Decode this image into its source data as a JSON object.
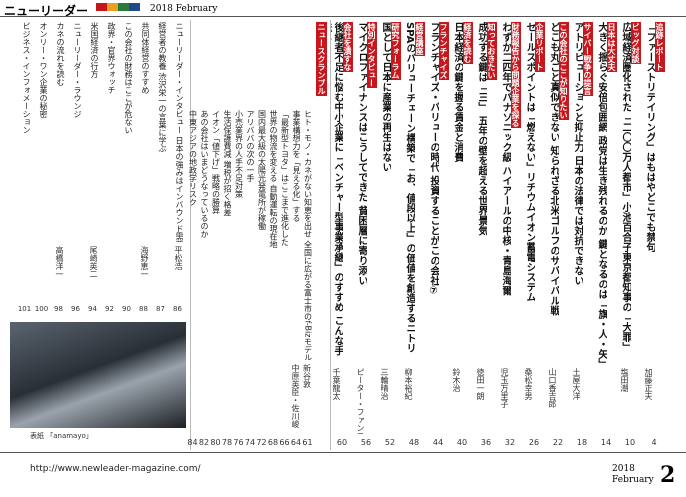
{
  "header": {
    "magazine": "ニューリーダー",
    "issue": "2018 February"
  },
  "features": [
    {
      "tag": "追跡レポート",
      "title": "「ファーストリテイリング」はもはやどこでも禁句",
      "author": "加藤正夫",
      "page": "4"
    },
    {
      "tag": "ビッグ対談",
      "title": "広域経済圏化された「二〇〇万人都市」小池百合子東京都知事の「大罪」",
      "author": "塩田潮",
      "page": "10"
    },
    {
      "tag": "日本は大丈夫",
      "title": "大きく揺らぐ安倍包囲網 政党は生き残れるのか 鍵となるのは「旗・人・矢」",
      "page": "14"
    },
    {
      "tag": "サイバー戦争の提言",
      "title": "アトリビューションと抑止力 日本の法律では対抗できない",
      "author": "土屋大洋",
      "page": "18"
    },
    {
      "tag": "この会社のここが知りたい",
      "title": "どこも丸ごと真似できない 知られざる北米ゴルフのサバイバル戦",
      "author": "山口香吉郎",
      "page": "22"
    },
    {
      "tag": "企業リポート",
      "title": "セールスポイントは「燃えない」リチウムイオン蓄電システム",
      "author": "桑松幸男",
      "page": "26"
    },
    {
      "tag": "財務報告から問題企業を探る",
      "title": "わずか二四年でパナソニック級 ハイアールの中核・青島海爾",
      "author": "児玉万里子",
      "page": "32"
    },
    {
      "tag": "知っておきたい",
      "title": "成功する鍵は「三」 五年の壁を超える世界景気",
      "author": "徳田一朗",
      "page": "36"
    },
    {
      "tag": "経済を読む",
      "title": "日本経済の鍵を握る賃金と消費",
      "author": "鈴木治",
      "page": "40"
    },
    {
      "tag": "フランチャイズ",
      "title": "フランチャイズ・バリューの時代 投資することがこの会社⑦",
      "page": "44"
    },
    {
      "tag": "経営講座",
      "title": "SPAのバリューチェーン構築で「お、値段以上」の価値を創造するニトリ",
      "author": "柳本裕紀",
      "page": "48"
    },
    {
      "tag": "研究フォーラム",
      "title": "国として日本に産業の再生はない",
      "author": "三輪晴治",
      "page": "52"
    },
    {
      "tag": "特別インタビュー",
      "title": "マイクロファイナンスはこうしてできた 貧困層に寄り添い",
      "author": "ピーター・ファンヨーニ",
      "page": "56"
    },
    {
      "tag": "会社を潰すな",
      "title": "後継者不足に悩む中小企業に「ベンチャー型事業承継」のすすめ こんな手法も",
      "author": "千葉龍太",
      "page": "60"
    }
  ],
  "news": {
    "tag": "ニュースクランブル",
    "items": [
      {
        "title": "ヒト・モノ・カネがない知恵を出せ 全国に広がる富士市のf-Bizモデル",
        "author": "新谷敦",
        "page": "61"
      },
      {
        "title": "事業構想力を「見える化」する",
        "author": "中原英臣・佐川峻",
        "page": "64"
      },
      {
        "title": "「最新型トヨタ」はここまで進化した",
        "page": "66"
      },
      {
        "title": "世界の物流を変える 自動運転の現在地",
        "page": "68"
      },
      {
        "title": "国内最大級の太陽光発電所が稼働",
        "page": "72"
      },
      {
        "title": "アリババの次の一手",
        "page": "74"
      },
      {
        "title": "小売業界の人手不足対策",
        "page": "76"
      },
      {
        "title": "生活保護費減 増税が招く格差",
        "page": "78"
      },
      {
        "title": "イオン「値下げ」戦略の勝算",
        "page": "80"
      },
      {
        "title": "あの会社はいまどうなっているのか",
        "page": "82"
      },
      {
        "title": "中東アジアの地政学リスク",
        "page": "84"
      }
    ]
  },
  "columns": [
    {
      "title": "ニューリーダー・インタビュー 日本の強みはインバウンド需要",
      "author": "平松浩",
      "page": "86"
    },
    {
      "title": "経営者の教養 渋沢栄一の言葉に学ぶ",
      "page": "87"
    },
    {
      "title": "共同体経営のすすめ",
      "author": "海野恵一",
      "page": "88"
    },
    {
      "title": "この会社の財務はここが危ない",
      "page": "90"
    },
    {
      "title": "政界・官界ウォッチ",
      "page": "92"
    },
    {
      "title": "米国経済の行方",
      "author": "尾崎英二",
      "page": "94"
    },
    {
      "title": "ニューリーダー・ラウンジ",
      "page": "96"
    },
    {
      "title": "カネの流れを読む",
      "author": "高橋洋一",
      "page": "98"
    },
    {
      "title": "オンリー・ワン企業の秘密",
      "page": "100"
    },
    {
      "title": "ビジネス・インフォメーション",
      "page": "101"
    }
  ],
  "photo": {
    "caption": "表紙 「anamayo」"
  },
  "footer": {
    "url": "http://www.newleader-magazine.com/",
    "year": "2018",
    "month": "February",
    "page": "2"
  }
}
